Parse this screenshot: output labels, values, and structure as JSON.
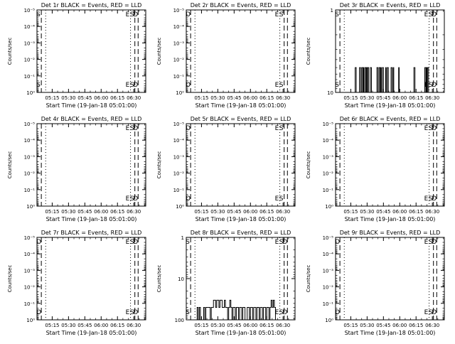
{
  "chart_data": [
    {
      "type": "line",
      "title": "Det 1r BLACK = Events, RED = LLD",
      "xlabel": "Start Time (19-Jan-18 05:01:00)",
      "ylabel": "Counts/sec",
      "scale": "log",
      "ylim": [
        1e-05,
        0.2
      ],
      "yticks": [
        "10⁻⁵",
        "10⁻⁴",
        "10⁻³",
        "10⁻²",
        "10⁻¹",
        "10⁰"
      ],
      "xticks": [
        "05:15",
        "05:30",
        "05:45",
        "06:00",
        "06:15",
        "06:30"
      ],
      "xrange_min": [
        0,
        100
      ],
      "ylim_linear": [],
      "marks": [
        {
          "t": 4,
          "label": "S",
          "style": "dash"
        },
        {
          "t": 8,
          "label": "",
          "style": "dot"
        },
        {
          "t": 86,
          "label": "E",
          "style": "dot"
        },
        {
          "t": 90,
          "label": "S",
          "style": "dash"
        },
        {
          "t": 93,
          "label": "D",
          "style": "dash"
        }
      ],
      "series": []
    },
    {
      "type": "line",
      "title": "Det 2r BLACK = Events, RED = LLD",
      "xlabel": "Start Time (19-Jan-18 05:01:00)",
      "ylabel": "Counts/sec",
      "scale": "log",
      "ylim": [
        1e-05,
        0.2
      ],
      "yticks": [
        "10⁻⁵",
        "10⁻⁴",
        "10⁻³",
        "10⁻²",
        "10⁻¹",
        "10⁰"
      ],
      "xticks": [
        "05:15",
        "05:30",
        "05:45",
        "06:00",
        "06:15",
        "06:30"
      ],
      "xrange_min": [
        0,
        100
      ],
      "marks": [
        {
          "t": 4,
          "label": "D",
          "style": "dash"
        },
        {
          "t": 8,
          "label": "",
          "style": "dot"
        },
        {
          "t": 86,
          "label": "E",
          "style": "dot"
        },
        {
          "t": 90,
          "label": "S",
          "style": "dash"
        },
        {
          "t": 93,
          "label": "",
          "style": "dash"
        }
      ],
      "series": []
    },
    {
      "type": "line",
      "title": "Det 3r BLACK = Events, RED = LLD",
      "xlabel": "Start Time (19-Jan-18 05:01:00)",
      "ylabel": "Counts/sec",
      "scale": "log",
      "ylim": [
        1,
        10
      ],
      "yticks": [
        "1",
        "10"
      ],
      "xticks": [
        "05:15",
        "05:30",
        "05:45",
        "06:00",
        "06:15",
        "06:30"
      ],
      "xrange_min": [
        0,
        100
      ],
      "marks": [
        {
          "t": 4,
          "label": "S",
          "style": "dash"
        },
        {
          "t": 8,
          "label": "",
          "style": "dot"
        },
        {
          "t": 86,
          "label": "E",
          "style": "dot"
        },
        {
          "t": 90,
          "label": "S",
          "style": "dash"
        },
        {
          "t": 93,
          "label": "D",
          "style": "dash"
        }
      ],
      "series": [
        {
          "pulses": [
            [
              18,
              19
            ],
            [
              22,
              23
            ],
            [
              24,
              25
            ],
            [
              25.5,
              26
            ],
            [
              27,
              28
            ],
            [
              28.5,
              29
            ],
            [
              29.5,
              30.5
            ],
            [
              32,
              33
            ],
            [
              38,
              39
            ],
            [
              40,
              41
            ],
            [
              41.5,
              42
            ],
            [
              43,
              44
            ],
            [
              46,
              46.5
            ],
            [
              47.5,
              48.5
            ],
            [
              51,
              52
            ],
            [
              53,
              53.5
            ],
            [
              58,
              58.5
            ],
            [
              72,
              73
            ],
            [
              82,
              83
            ],
            [
              83.5,
              84
            ],
            [
              84.5,
              85.5
            ]
          ],
          "level": 2
        }
      ]
    },
    {
      "type": "line",
      "title": "Det 4r BLACK = Events, RED = LLD",
      "xlabel": "Start Time (19-Jan-18 05:01:00)",
      "ylabel": "Counts/sec",
      "scale": "log",
      "ylim": [
        1e-05,
        0.2
      ],
      "yticks": [
        "10⁻⁵",
        "10⁻⁴",
        "10⁻³",
        "10⁻²",
        "10⁻¹",
        "10⁰"
      ],
      "xticks": [
        "05:15",
        "05:30",
        "05:45",
        "06:00",
        "06:15",
        "06:30"
      ],
      "xrange_min": [
        0,
        100
      ],
      "marks": [
        {
          "t": 4,
          "label": "",
          "style": "dash"
        },
        {
          "t": 8,
          "label": "",
          "style": "dot"
        },
        {
          "t": 86,
          "label": "E",
          "style": "dot"
        },
        {
          "t": 90,
          "label": "S",
          "style": "dash"
        },
        {
          "t": 93,
          "label": "D",
          "style": "dash"
        }
      ],
      "series": []
    },
    {
      "type": "line",
      "title": "Det 5r BLACK = Events, RED = LLD",
      "xlabel": "Start Time (19-Jan-18 05:01:00)",
      "ylabel": "Counts/sec",
      "scale": "log",
      "ylim": [
        1e-05,
        0.2
      ],
      "yticks": [
        "10⁻⁵",
        "10⁻⁴",
        "10⁻³",
        "10⁻²",
        "10⁻¹",
        "10⁰"
      ],
      "xticks": [
        "05:15",
        "05:30",
        "05:45",
        "06:00",
        "06:15",
        "06:30"
      ],
      "xrange_min": [
        0,
        100
      ],
      "marks": [
        {
          "t": 4,
          "label": "D",
          "style": "dash"
        },
        {
          "t": 8,
          "label": "",
          "style": "dot"
        },
        {
          "t": 86,
          "label": "E",
          "style": "dot"
        },
        {
          "t": 90,
          "label": "S",
          "style": "dash"
        },
        {
          "t": 93,
          "label": "",
          "style": "dash"
        }
      ],
      "series": []
    },
    {
      "type": "line",
      "title": "Det 6r BLACK = Events, RED = LLD",
      "xlabel": "Start Time (19-Jan-18 05:01:00)",
      "ylabel": "Counts/sec",
      "scale": "log",
      "ylim": [
        1e-05,
        0.2
      ],
      "yticks": [
        "10⁻⁵",
        "10⁻⁴",
        "10⁻³",
        "10⁻²",
        "10⁻¹",
        "10⁰"
      ],
      "xticks": [
        "05:15",
        "05:30",
        "05:45",
        "06:00",
        "06:15",
        "06:30"
      ],
      "xrange_min": [
        0,
        100
      ],
      "marks": [
        {
          "t": 4,
          "label": "",
          "style": "dash"
        },
        {
          "t": 8,
          "label": "",
          "style": "dot"
        },
        {
          "t": 86,
          "label": "E",
          "style": "dot"
        },
        {
          "t": 90,
          "label": "S",
          "style": "dash"
        },
        {
          "t": 93,
          "label": "D",
          "style": "dash"
        }
      ],
      "series": []
    },
    {
      "type": "line",
      "title": "Det 7r BLACK = Events, RED = LLD",
      "xlabel": "Start Time (19-Jan-18 05:01:00)",
      "ylabel": "Counts/sec",
      "scale": "log",
      "ylim": [
        1e-05,
        0.2
      ],
      "yticks": [
        "10⁻⁵",
        "10⁻⁴",
        "10⁻³",
        "10⁻²",
        "10⁻¹",
        "10⁰"
      ],
      "xticks": [
        "05:15",
        "05:30",
        "05:45",
        "06:00",
        "06:15",
        "06:30"
      ],
      "xrange_min": [
        0,
        100
      ],
      "marks": [
        {
          "t": 4,
          "label": "D",
          "style": "dash"
        },
        {
          "t": 8,
          "label": "",
          "style": "dot"
        },
        {
          "t": 86,
          "label": "E",
          "style": "dot"
        },
        {
          "t": 90,
          "label": "S",
          "style": "dash"
        },
        {
          "t": 93,
          "label": "D",
          "style": "dash"
        }
      ],
      "series": []
    },
    {
      "type": "line",
      "title": "Det 8r BLACK = Events, RED = LLD",
      "xlabel": "Start Time (19-Jan-18 05:01:00)",
      "ylabel": "Counts/sec",
      "scale": "log",
      "ylim": [
        1,
        100
      ],
      "yticks": [
        "1",
        "10",
        "100"
      ],
      "xticks": [
        "05:15",
        "05:30",
        "05:45",
        "06:00",
        "06:15",
        "06:30"
      ],
      "xrange_min": [
        0,
        100
      ],
      "marks": [
        {
          "t": 4,
          "label": "S",
          "style": "dash"
        },
        {
          "t": 8,
          "label": "",
          "style": "dot"
        },
        {
          "t": 86,
          "label": "E",
          "style": "dot"
        },
        {
          "t": 90,
          "label": "S",
          "style": "dash"
        },
        {
          "t": 93,
          "label": "D",
          "style": "dash"
        }
      ],
      "series": [
        {
          "steps": [
            [
              6,
              1
            ],
            [
              10,
              2
            ],
            [
              11,
              1
            ],
            [
              12,
              2
            ],
            [
              13,
              1
            ],
            [
              16,
              2
            ],
            [
              17,
              1
            ],
            [
              18,
              2
            ],
            [
              22,
              1
            ],
            [
              23,
              2
            ],
            [
              25,
              3
            ],
            [
              27,
              2
            ],
            [
              28,
              3
            ],
            [
              30,
              2
            ],
            [
              31,
              3
            ],
            [
              33,
              2
            ],
            [
              35,
              3
            ],
            [
              36,
              2
            ],
            [
              38,
              1
            ],
            [
              39,
              2
            ],
            [
              40,
              3
            ],
            [
              41,
              2
            ],
            [
              42,
              1
            ],
            [
              43,
              2
            ],
            [
              45,
              1
            ],
            [
              46,
              2
            ],
            [
              48,
              1
            ],
            [
              49,
              2
            ],
            [
              51,
              1
            ],
            [
              52,
              2
            ],
            [
              54,
              1
            ],
            [
              56,
              2
            ],
            [
              58,
              1
            ],
            [
              59,
              2
            ],
            [
              61,
              1
            ],
            [
              62,
              2
            ],
            [
              64,
              1
            ],
            [
              65,
              2
            ],
            [
              67,
              1
            ],
            [
              68,
              2
            ],
            [
              70,
              1
            ],
            [
              71,
              2
            ],
            [
              73,
              1
            ],
            [
              74,
              2
            ],
            [
              76,
              1
            ],
            [
              77,
              2
            ],
            [
              78,
              3
            ],
            [
              79,
              2
            ],
            [
              80,
              3
            ],
            [
              81,
              2
            ],
            [
              82,
              1
            ],
            [
              83,
              1
            ]
          ]
        }
      ]
    },
    {
      "type": "line",
      "title": "Det 9r BLACK = Events, RED = LLD",
      "xlabel": "Start Time (19-Jan-18 05:01:00)",
      "ylabel": "Counts/sec",
      "scale": "log",
      "ylim": [
        1e-05,
        0.2
      ],
      "yticks": [
        "10⁻⁵",
        "10⁻⁴",
        "10⁻³",
        "10⁻²",
        "10⁻¹",
        "10⁰"
      ],
      "xticks": [
        "05:15",
        "05:30",
        "05:45",
        "06:00",
        "06:15",
        "06:30"
      ],
      "xrange_min": [
        0,
        100
      ],
      "marks": [
        {
          "t": 4,
          "label": "D",
          "style": "dash"
        },
        {
          "t": 8,
          "label": "",
          "style": "dot"
        },
        {
          "t": 86,
          "label": "E",
          "style": "dot"
        },
        {
          "t": 90,
          "label": "S",
          "style": "dash"
        },
        {
          "t": 93,
          "label": "D",
          "style": "dash"
        }
      ],
      "series": []
    }
  ]
}
